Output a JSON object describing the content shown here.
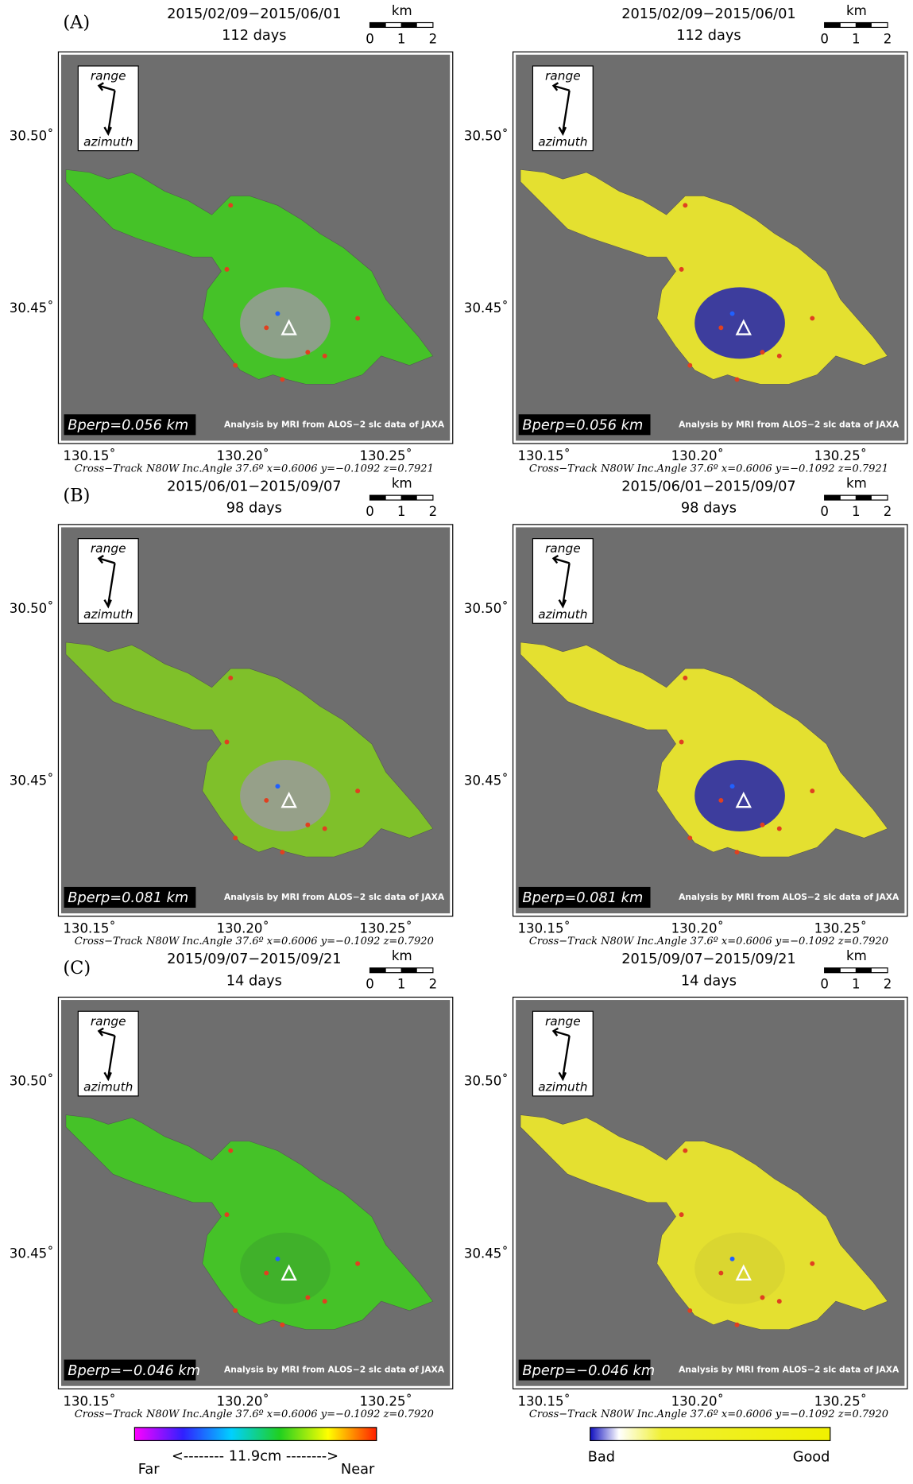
{
  "common": {
    "km": "km",
    "scale_labels": [
      "0",
      "1",
      "2"
    ],
    "lat_labels": [
      "30.50˚",
      "30.45˚"
    ],
    "lon_labels": [
      "130.15˚",
      "130.20˚",
      "130.25˚"
    ],
    "range": "range",
    "azimuth": "azimuth",
    "credit": "Analysis by MRI from ALOS−2 slc data of JAXA"
  },
  "rows": [
    {
      "label": "(A)",
      "dates": "2015/02/09−2015/06/01",
      "duration": "112 days",
      "bperp": "Bperp=0.056 km",
      "footer": "Cross−Track N80W  Inc.Angle 37.6º  x=0.6006  y=−0.1092  z=0.7921"
    },
    {
      "label": "(B)",
      "dates": "2015/06/01−2015/09/07",
      "duration": "98 days",
      "bperp": "Bperp=0.081 km",
      "footer": "Cross−Track N80W  Inc.Angle 37.6º  x=0.6006  y=−0.1092  z=0.7920"
    },
    {
      "label": "(C)",
      "dates": "2015/09/07−2015/09/21",
      "duration": "14 days",
      "bperp": "Bperp=−0.046 km",
      "footer": "Cross−Track N80W  Inc.Angle 37.6º  x=0.6006  y=−0.1092  z=0.7920"
    }
  ],
  "colorbars": {
    "displacement": {
      "label": "<-------- 11.9cm -------->",
      "left": "Far",
      "right": "Near"
    },
    "coherence": {
      "left": "Bad",
      "right": "Good"
    }
  }
}
